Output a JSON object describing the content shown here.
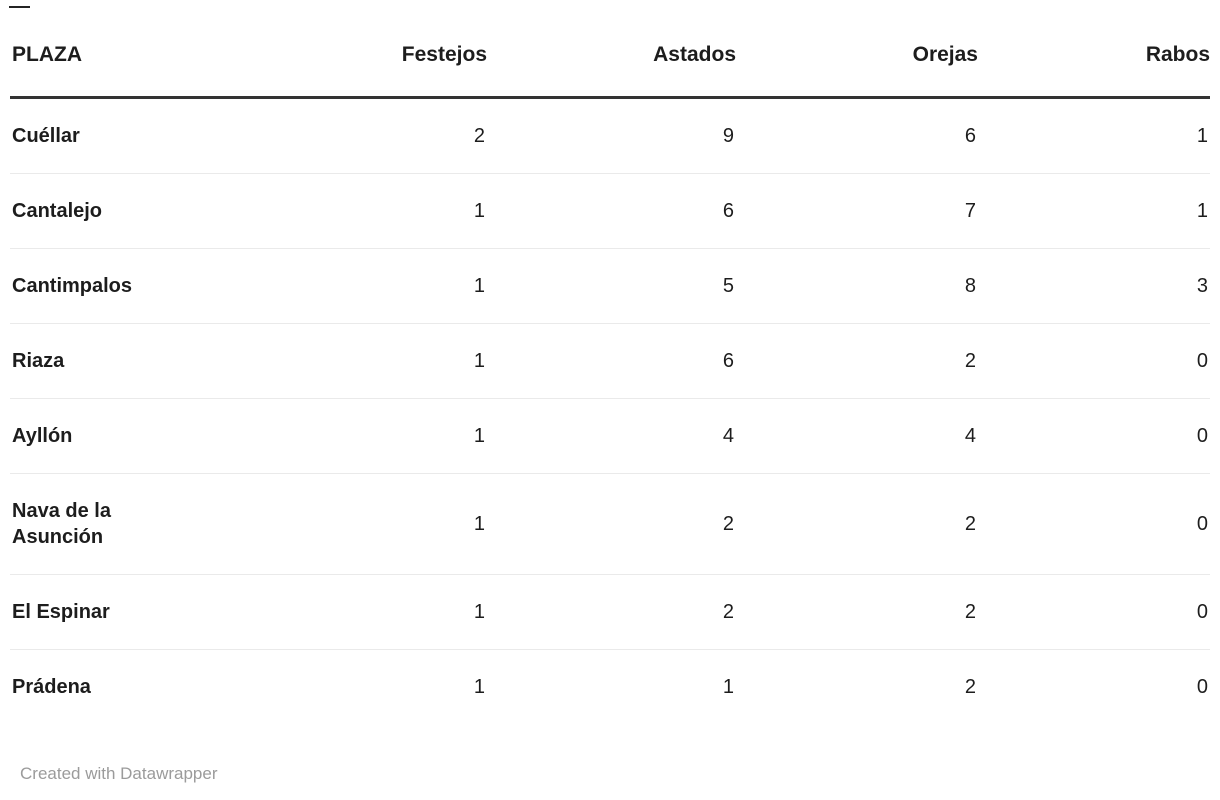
{
  "chart_data": {
    "type": "table",
    "columns": [
      {
        "label": "PLAZA",
        "align": "left"
      },
      {
        "label": "Festejos",
        "align": "right"
      },
      {
        "label": "Astados",
        "align": "right"
      },
      {
        "label": "Orejas",
        "align": "right"
      },
      {
        "label": "Rabos",
        "align": "right"
      }
    ],
    "rows": [
      {
        "plaza": "Cuéllar",
        "values": [
          "2",
          "9",
          "6",
          "1"
        ]
      },
      {
        "plaza": "Cantalejo",
        "values": [
          "1",
          "6",
          "7",
          "1"
        ]
      },
      {
        "plaza": "Cantimpalos",
        "values": [
          "1",
          "5",
          "8",
          "3"
        ]
      },
      {
        "plaza": "Riaza",
        "values": [
          "1",
          "6",
          "2",
          "0"
        ]
      },
      {
        "plaza": "Ayllón",
        "values": [
          "1",
          "4",
          "4",
          "0"
        ]
      },
      {
        "plaza": "Nava de la Asunción",
        "values": [
          "1",
          "2",
          "2",
          "0"
        ]
      },
      {
        "plaza": "El Espinar",
        "values": [
          "1",
          "2",
          "2",
          "0"
        ]
      },
      {
        "plaza": "Prádena",
        "values": [
          "1",
          "1",
          "2",
          "0"
        ]
      }
    ],
    "grid": "horizontal-rules-only",
    "legend_position": "none"
  },
  "footer": {
    "credit": "Created with Datawrapper"
  },
  "style": {
    "header_border": "#333333",
    "row_separator": "#eaeaea",
    "text": "#1d1d1d",
    "footer_text": "#9b9b9b",
    "background": "#ffffff"
  }
}
